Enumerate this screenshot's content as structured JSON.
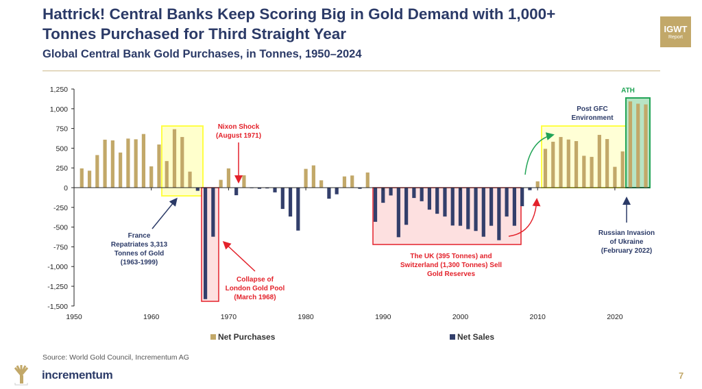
{
  "header": {
    "title_line1": "Hattrick! Central Banks Keep Scoring Big in Gold Demand with 1,000+",
    "title_line2": "Tonnes Purchased for Third Straight Year",
    "subtitle": "Global Central Bank Gold Purchases, in Tonnes, 1950–2024",
    "badge_line1": "IGWT",
    "badge_line2": "Report"
  },
  "footer": {
    "source": "Source: World Gold Council, Incrementum AG",
    "logo_text": "incrementum",
    "page_number": "7"
  },
  "colors": {
    "purchases": "#c2a869",
    "sales": "#333f6b",
    "title": "#2b3a67",
    "annotation_red": "#e3212a",
    "annotation_green": "#21a456",
    "highlight_yellow": "#ffff66"
  },
  "chart_data": {
    "type": "bar",
    "title": "Global Central Bank Gold Purchases, in Tonnes, 1950–2024",
    "xlabel": "",
    "ylabel": "",
    "ylim": [
      -1500,
      1250
    ],
    "xlim": [
      1950,
      2024
    ],
    "y_ticks": [
      "1,250",
      "1,000",
      "750",
      "500",
      "250",
      "0",
      "-250",
      "-500",
      "-750",
      "-1,000",
      "-1,250",
      "-1,500"
    ],
    "y_tick_values": [
      1250,
      1000,
      750,
      500,
      250,
      0,
      -250,
      -500,
      -750,
      -1000,
      -1250,
      -1500
    ],
    "x_ticks": [
      "1950",
      "1960",
      "1970",
      "1980",
      "1990",
      "2000",
      "2010",
      "2020"
    ],
    "grid": false,
    "legend": {
      "placement": "bottom",
      "entries": [
        "Net Purchases",
        "Net Sales"
      ]
    },
    "years": [
      1951,
      1952,
      1953,
      1954,
      1955,
      1956,
      1957,
      1958,
      1959,
      1960,
      1961,
      1962,
      1963,
      1964,
      1965,
      1966,
      1967,
      1968,
      1969,
      1970,
      1971,
      1972,
      1973,
      1974,
      1975,
      1976,
      1977,
      1978,
      1979,
      1980,
      1981,
      1982,
      1983,
      1984,
      1985,
      1986,
      1987,
      1988,
      1989,
      1990,
      1991,
      1992,
      1993,
      1994,
      1995,
      1996,
      1997,
      1998,
      1999,
      2000,
      2001,
      2002,
      2003,
      2004,
      2005,
      2006,
      2007,
      2008,
      2009,
      2010,
      2011,
      2012,
      2013,
      2014,
      2015,
      2016,
      2017,
      2018,
      2019,
      2020,
      2021,
      2022,
      2023,
      2024
    ],
    "values": [
      244,
      215,
      413,
      608,
      599,
      445,
      622,
      613,
      680,
      270,
      547,
      337,
      741,
      642,
      203,
      -40,
      -1413,
      -622,
      99,
      244,
      -96,
      157,
      -5,
      -15,
      -10,
      -60,
      -270,
      -366,
      -544,
      238,
      282,
      93,
      -140,
      -84,
      142,
      154,
      -15,
      192,
      -433,
      -192,
      -99,
      -628,
      -471,
      -131,
      -172,
      -279,
      -331,
      -366,
      -480,
      -483,
      -526,
      -549,
      -622,
      -483,
      -666,
      -366,
      -483,
      -235,
      -32,
      80,
      492,
      582,
      642,
      610,
      590,
      404,
      390,
      669,
      616,
      264,
      459,
      1093,
      1064,
      1055
    ],
    "annotations": {
      "nixon": [
        "Nixon Shock",
        "(August 1971)"
      ],
      "france": [
        "France",
        "Repatriates 3,313",
        "Tonnes of Gold",
        "(1963-1999)"
      ],
      "london": [
        "Collapse of",
        "London Gold Pool",
        "(March 1968)"
      ],
      "uk": [
        "The UK (395 Tonnes) and",
        "Switzerland (1,300 Tonnes) Sell",
        "Gold Reserves"
      ],
      "gfc": [
        "Post GFC",
        "Environment"
      ],
      "ath": "ATH",
      "russia": [
        "Russian Invasion",
        "of Ukraine",
        "(February 2022)"
      ]
    }
  }
}
